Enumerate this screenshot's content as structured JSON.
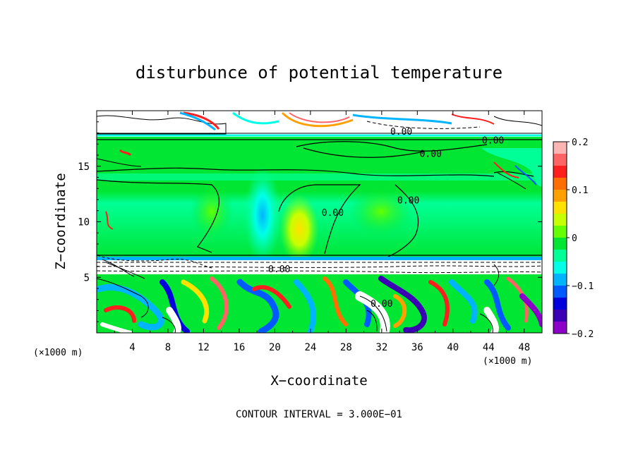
{
  "chart_data": {
    "type": "heatmap",
    "title": "disturbunce of potential temperature",
    "xlabel": "X−coordinate",
    "ylabel": "Z−coordinate",
    "x_unit_left": "(×1000 m)",
    "x_unit_right": "(×1000 m)",
    "xlim": [
      0,
      50
    ],
    "ylim": [
      0,
      20
    ],
    "x_ticks": [
      4,
      8,
      12,
      16,
      20,
      24,
      28,
      32,
      36,
      40,
      44,
      48
    ],
    "x_tick_labels": [
      "4",
      "8",
      "12",
      "16",
      "20",
      "24",
      "28",
      "32",
      "36",
      "40",
      "44",
      "48"
    ],
    "y_ticks": [
      5,
      10,
      15
    ],
    "y_tick_labels": [
      "5",
      "10",
      "15"
    ],
    "colorbar": {
      "range": [
        -0.2,
        0.2
      ],
      "ticks": [
        0.2,
        0.1,
        0,
        -0.1,
        -0.2
      ],
      "tick_labels": [
        "0.2",
        "0.1",
        "0",
        "−0.1",
        "−0.2"
      ],
      "colors": [
        "#ffb4b4",
        "#ff6464",
        "#ff1e1e",
        "#ff6e00",
        "#ffa000",
        "#ffe100",
        "#c8ff00",
        "#64ff00",
        "#00e632",
        "#00ff96",
        "#00ffe6",
        "#00b4ff",
        "#005aff",
        "#0000dc",
        "#3c00b4",
        "#8c00c8"
      ]
    },
    "contour_labels": [
      {
        "text": "0.00",
        "x": 34.2,
        "z": 18.1
      },
      {
        "text": "0.00",
        "x": 44.5,
        "z": 17.3
      },
      {
        "text": "0.00",
        "x": 37.5,
        "z": 16.1
      },
      {
        "text": "0.00",
        "x": 26.5,
        "z": 10.8
      },
      {
        "text": "0.00",
        "x": 35.0,
        "z": 11.9
      },
      {
        "text": "0.00",
        "x": 20.5,
        "z": 5.7
      },
      {
        "text": "0.00",
        "x": 32.0,
        "z": 2.6
      }
    ],
    "contour_interval_text": "CONTOUR INTERVAL = 3.000E−01"
  }
}
